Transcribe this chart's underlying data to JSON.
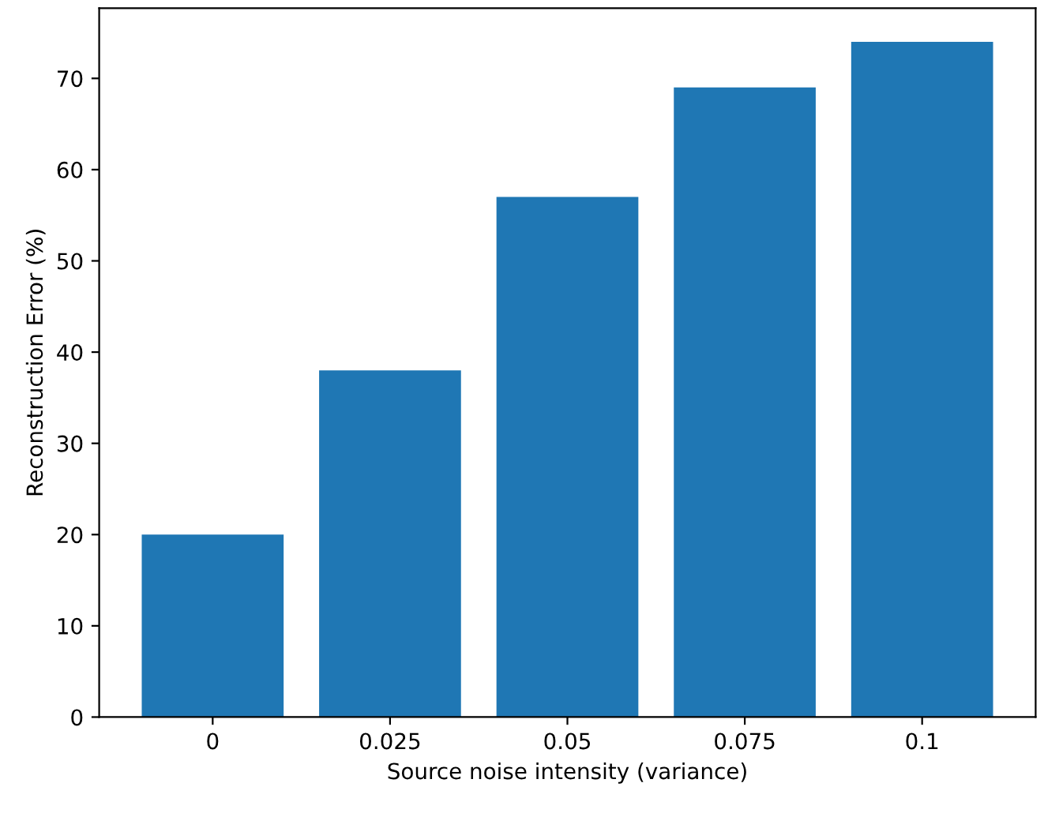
{
  "chart_data": {
    "type": "bar",
    "xlabel": "Source noise intensity (variance)",
    "ylabel": "Reconstruction Error (%)",
    "categories": [
      "0",
      "0.025",
      "0.05",
      "0.075",
      "0.1"
    ],
    "values": [
      20,
      38,
      57,
      69,
      74
    ],
    "color": "#1f77b4",
    "ylim": [
      0,
      77.7
    ],
    "yticks": [
      0,
      10,
      20,
      30,
      40,
      50,
      60,
      70
    ],
    "grid": false
  }
}
